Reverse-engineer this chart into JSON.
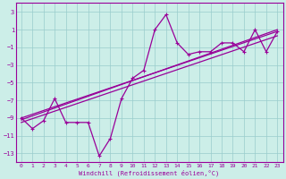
{
  "xlabel": "Windchill (Refroidissement éolien,°C)",
  "bg_color": "#cceee8",
  "grid_color": "#99cccc",
  "line_color": "#990099",
  "spine_color": "#660066",
  "xlim": [
    -0.5,
    23.5
  ],
  "ylim": [
    -14,
    4
  ],
  "yticks": [
    3,
    1,
    -1,
    -3,
    -5,
    -7,
    -9,
    -11,
    -13
  ],
  "xticks": [
    0,
    1,
    2,
    3,
    4,
    5,
    6,
    7,
    8,
    9,
    10,
    11,
    12,
    13,
    14,
    15,
    16,
    17,
    18,
    19,
    20,
    21,
    22,
    23
  ],
  "series1_x": [
    0,
    1,
    2,
    3,
    4,
    5,
    6,
    7,
    8,
    9,
    10,
    11,
    12,
    13,
    14,
    15,
    16,
    17,
    18,
    19,
    20,
    21,
    22,
    23
  ],
  "series1_y": [
    -9.0,
    -10.2,
    -9.3,
    -6.8,
    -9.5,
    -9.5,
    -9.5,
    -13.3,
    -11.3,
    -6.8,
    -4.5,
    -3.6,
    1.0,
    2.7,
    -0.5,
    -1.8,
    -1.5,
    -1.5,
    -0.5,
    -0.5,
    -1.5,
    1.0,
    -1.5,
    0.8
  ],
  "series2_x": [
    0,
    23
  ],
  "series2_y": [
    -9.0,
    0.8
  ],
  "series3_x": [
    0,
    23
  ],
  "series3_y": [
    -9.2,
    1.0
  ],
  "series4_x": [
    0,
    23
  ],
  "series4_y": [
    -9.5,
    0.3
  ]
}
